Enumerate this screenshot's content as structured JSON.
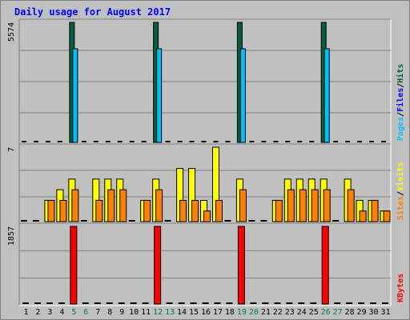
{
  "title": "Daily usage for August 2017",
  "colors": {
    "hits": "#006040",
    "files": "#00c0ff",
    "pages": "#00c0ff",
    "visits": "#ffff00",
    "sites": "#ff8000",
    "kbytes": "#ff0000",
    "weekend_label": "#007f3f",
    "weekday_label": "#000000"
  },
  "chart_data": [
    {
      "type": "bar",
      "panel": "hits-files-pages",
      "y_max_label": "5574",
      "ylim": [
        0,
        5574
      ],
      "legend": [
        {
          "text": "Pages",
          "color": "#00c0ff"
        },
        {
          "text": "Files",
          "color": "#0000ff"
        },
        {
          "text": "Hits",
          "color": "#006040"
        }
      ],
      "categories": [
        "1",
        "2",
        "3",
        "4",
        "5",
        "6",
        "7",
        "8",
        "9",
        "10",
        "11",
        "12",
        "13",
        "14",
        "15",
        "16",
        "17",
        "18",
        "19",
        "20",
        "21",
        "22",
        "23",
        "24",
        "25",
        "26",
        "27",
        "28",
        "29",
        "30",
        "31"
      ],
      "series": [
        {
          "name": "Hits",
          "values": [
            0,
            0,
            0,
            0,
            5574,
            0,
            0,
            0,
            0,
            0,
            0,
            5574,
            0,
            0,
            0,
            0,
            0,
            0,
            5574,
            0,
            0,
            0,
            0,
            0,
            0,
            5574,
            0,
            0,
            0,
            0,
            0
          ]
        },
        {
          "name": "Files",
          "values": [
            0,
            0,
            0,
            0,
            4350,
            0,
            0,
            0,
            0,
            0,
            0,
            4350,
            0,
            0,
            0,
            0,
            0,
            0,
            4350,
            0,
            0,
            0,
            0,
            0,
            0,
            4350,
            0,
            0,
            0,
            0,
            0
          ]
        },
        {
          "name": "Pages",
          "values": [
            0,
            0,
            0,
            0,
            0,
            0,
            0,
            0,
            0,
            0,
            0,
            0,
            0,
            0,
            0,
            0,
            0,
            0,
            0,
            0,
            0,
            0,
            0,
            0,
            0,
            0,
            0,
            0,
            0,
            0,
            0
          ]
        }
      ]
    },
    {
      "type": "bar",
      "panel": "visits-sites",
      "y_max_label": "7",
      "ylim": [
        0,
        7
      ],
      "legend": [
        {
          "text": "Sites",
          "color": "#ff8000"
        },
        {
          "text": "Visits",
          "color": "#ffff00"
        }
      ],
      "categories": [
        "1",
        "2",
        "3",
        "4",
        "5",
        "6",
        "7",
        "8",
        "9",
        "10",
        "11",
        "12",
        "13",
        "14",
        "15",
        "16",
        "17",
        "18",
        "19",
        "20",
        "21",
        "22",
        "23",
        "24",
        "25",
        "26",
        "27",
        "28",
        "29",
        "30",
        "31"
      ],
      "series": [
        {
          "name": "Visits",
          "values": [
            0,
            0,
            2,
            3,
            4,
            0,
            4,
            4,
            4,
            0,
            2,
            4,
            0,
            5,
            5,
            2,
            7,
            0,
            4,
            0,
            0,
            2,
            4,
            4,
            4,
            4,
            0,
            4,
            2,
            2,
            1
          ]
        },
        {
          "name": "Sites",
          "values": [
            0,
            0,
            2,
            2,
            3,
            0,
            2,
            3,
            3,
            0,
            2,
            3,
            0,
            2,
            2,
            1,
            2,
            0,
            3,
            0,
            0,
            2,
            3,
            3,
            3,
            3,
            0,
            3,
            1,
            2,
            1
          ]
        }
      ]
    },
    {
      "type": "bar",
      "panel": "kbytes",
      "y_max_label": "1857",
      "ylim": [
        0,
        1857
      ],
      "legend": [
        {
          "text": "KBytes",
          "color": "#ff0000"
        }
      ],
      "categories": [
        "1",
        "2",
        "3",
        "4",
        "5",
        "6",
        "7",
        "8",
        "9",
        "10",
        "11",
        "12",
        "13",
        "14",
        "15",
        "16",
        "17",
        "18",
        "19",
        "20",
        "21",
        "22",
        "23",
        "24",
        "25",
        "26",
        "27",
        "28",
        "29",
        "30",
        "31"
      ],
      "series": [
        {
          "name": "KBytes",
          "values": [
            0,
            0,
            0,
            0,
            1857,
            0,
            0,
            0,
            0,
            0,
            0,
            1857,
            0,
            0,
            0,
            0,
            0,
            0,
            1857,
            0,
            0,
            0,
            0,
            0,
            0,
            1857,
            0,
            0,
            0,
            0,
            0
          ]
        }
      ]
    }
  ],
  "weekend_days": [
    5,
    6,
    12,
    13,
    19,
    20,
    26,
    27
  ]
}
